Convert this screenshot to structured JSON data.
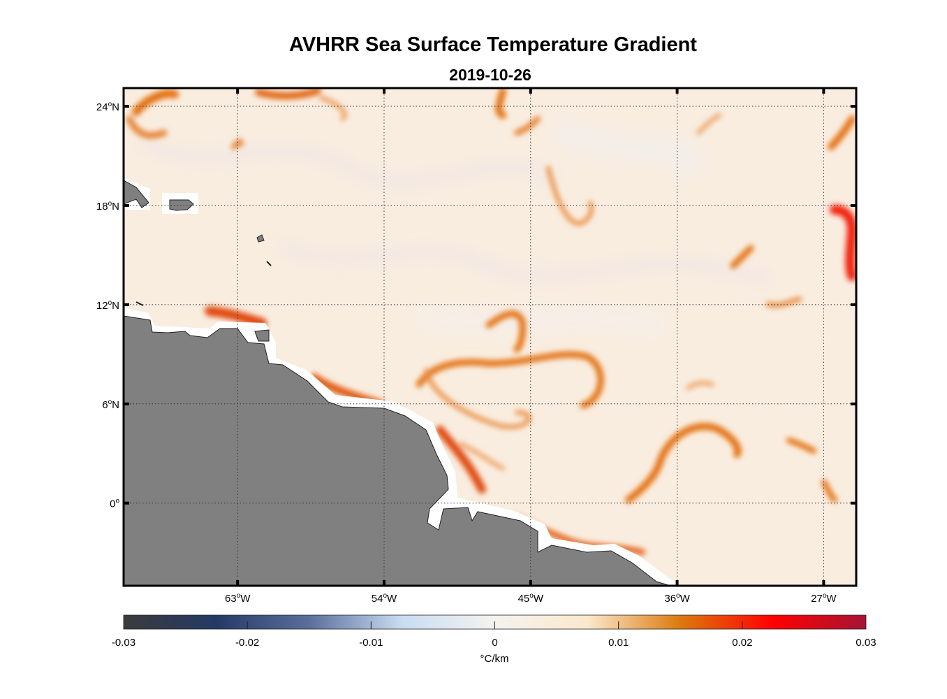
{
  "chart_data": {
    "type": "heatmap",
    "title": "AVHRR Sea Surface Temperature Gradient",
    "subtitle": "2019-10-26",
    "lon_range": [
      -70,
      -25
    ],
    "lat_range": [
      -5,
      25.1
    ],
    "x_ticks": [
      {
        "value": -63,
        "label": "63",
        "suffix": "W"
      },
      {
        "value": -54,
        "label": "54",
        "suffix": "W"
      },
      {
        "value": -45,
        "label": "45",
        "suffix": "W"
      },
      {
        "value": -36,
        "label": "36",
        "suffix": "W"
      },
      {
        "value": -27,
        "label": "27",
        "suffix": "W"
      }
    ],
    "y_ticks": [
      {
        "value": 24,
        "label": "24",
        "suffix": "N"
      },
      {
        "value": 18,
        "label": "18",
        "suffix": "N"
      },
      {
        "value": 12,
        "label": "12",
        "suffix": "N"
      },
      {
        "value": 6,
        "label": "6",
        "suffix": "N"
      },
      {
        "value": 0,
        "label": "0",
        "suffix": ""
      }
    ],
    "grid": true,
    "colorbar": {
      "range": [
        -0.03,
        0.03
      ],
      "ticks": [
        -0.03,
        -0.02,
        -0.01,
        0,
        0.01,
        0.02,
        0.03
      ],
      "tick_labels": [
        "-0.03",
        "-0.02",
        "-0.01",
        "0",
        "0.01",
        "0.02",
        "0.03"
      ],
      "label": "°C/km",
      "placement": "bottom",
      "colors": [
        "#3b3b3b",
        "#243a66",
        "#5c6f9c",
        "#c9dcf2",
        "#f4f3ef",
        "#fbe8cc",
        "#dc7a0e",
        "#ff0000",
        "#a51435"
      ]
    },
    "land_color": "#808080"
  }
}
